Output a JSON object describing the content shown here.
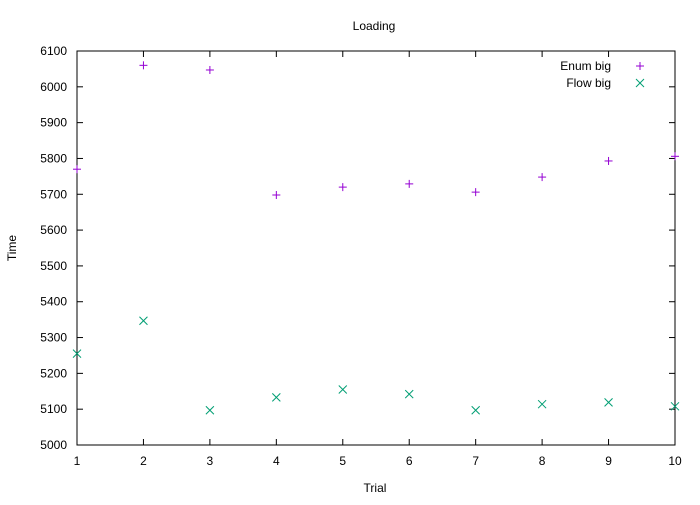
{
  "chart_data": {
    "type": "scatter",
    "title": "Loading",
    "xlabel": "Trial",
    "ylabel": "Time",
    "xlim": [
      1,
      10
    ],
    "ylim": [
      5000,
      6100
    ],
    "x_ticks": [
      "1",
      "2",
      "3",
      "4",
      "5",
      "6",
      "7",
      "8",
      "9",
      "10"
    ],
    "y_ticks": [
      "5000",
      "5100",
      "5200",
      "5300",
      "5400",
      "5500",
      "5600",
      "5700",
      "5800",
      "5900",
      "6000",
      "6100"
    ],
    "grid": false,
    "legend_position": "top-right",
    "x": [
      1,
      2,
      3,
      4,
      5,
      6,
      7,
      8,
      9,
      10
    ],
    "series": [
      {
        "name": "Enum big",
        "marker": "plus",
        "color": "#9400d3",
        "values": [
          5770,
          6060,
          6047,
          5698,
          5720,
          5729,
          5706,
          5748,
          5793,
          5806
        ]
      },
      {
        "name": "Flow big",
        "marker": "cross",
        "color": "#009e73",
        "values": [
          5255,
          5347,
          5097,
          5133,
          5155,
          5142,
          5097,
          5114,
          5119,
          5108
        ]
      }
    ]
  }
}
